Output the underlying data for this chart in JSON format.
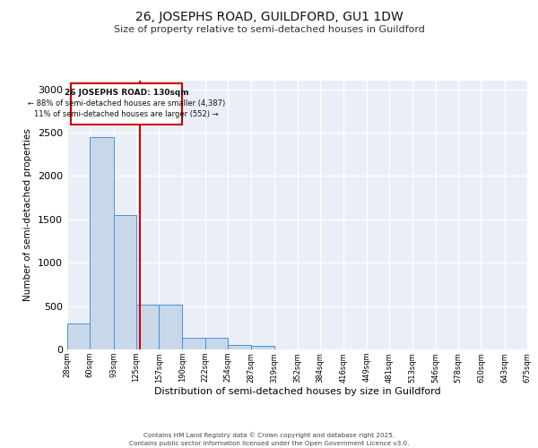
{
  "title_line1": "26, JOSEPHS ROAD, GUILDFORD, GU1 1DW",
  "title_line2": "Size of property relative to semi-detached houses in Guildford",
  "xlabel": "Distribution of semi-detached houses by size in Guildford",
  "ylabel": "Number of semi-detached properties",
  "bin_edges": [
    28,
    60,
    93,
    125,
    157,
    190,
    222,
    254,
    287,
    319,
    352,
    384,
    416,
    449,
    481,
    513,
    546,
    578,
    610,
    643,
    675
  ],
  "bar_heights": [
    300,
    2450,
    1550,
    520,
    520,
    130,
    130,
    55,
    40,
    0,
    0,
    0,
    0,
    0,
    0,
    0,
    0,
    0,
    0,
    0
  ],
  "bar_color": "#c8d8e8",
  "bar_edgecolor": "#4a90d9",
  "property_size": 130,
  "red_line_color": "#cc0000",
  "annotation_text_line1": "26 JOSEPHS ROAD: 130sqm",
  "annotation_text_line2": "← 88% of semi-detached houses are smaller (4,387)",
  "annotation_text_line3": "11% of semi-detached houses are larger (552) →",
  "annotation_box_color": "#cc0000",
  "ylim": [
    0,
    3100
  ],
  "yticks": [
    0,
    500,
    1000,
    1500,
    2000,
    2500,
    3000
  ],
  "background_color": "#eaeff7",
  "grid_color": "#ffffff",
  "footer_line1": "Contains HM Land Registry data © Crown copyright and database right 2025.",
  "footer_line2": "Contains public sector information licensed under the Open Government Licence v3.0."
}
